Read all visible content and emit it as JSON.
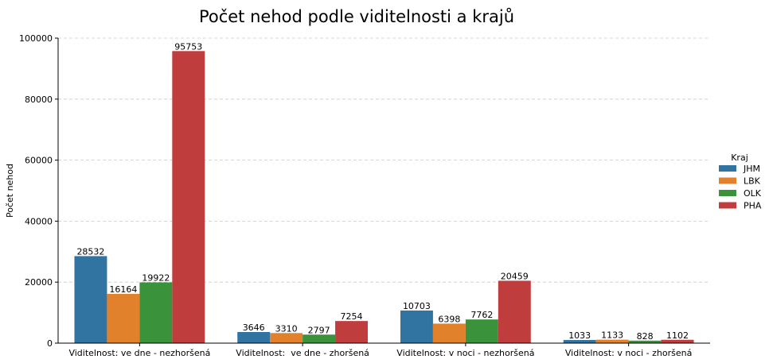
{
  "chart_data": {
    "type": "bar",
    "title": "Počet nehod podle viditelnosti a krajů",
    "xlabel": "",
    "ylabel": "Počet nehod",
    "ylim": [
      0,
      100000
    ],
    "yticks": [
      0,
      20000,
      40000,
      60000,
      80000,
      100000
    ],
    "grid": true,
    "legend": {
      "title": "Kraj",
      "placement": "right"
    },
    "categories": [
      "Viditelnost: ve dne - nezhoršená",
      "Viditelnost:  ve dne - zhoršená",
      "Viditelnost: v noci - nezhoršená",
      "Viditelnost: v noci - zhoršená"
    ],
    "series": [
      {
        "name": "JHM",
        "color": "#3274a1",
        "values": [
          28532,
          3646,
          10703,
          1033
        ]
      },
      {
        "name": "LBK",
        "color": "#e1812c",
        "values": [
          16164,
          3310,
          6398,
          1133
        ]
      },
      {
        "name": "OLK",
        "color": "#3a923a",
        "values": [
          19922,
          2797,
          7762,
          828
        ]
      },
      {
        "name": "PHA",
        "color": "#c03d3e",
        "values": [
          95753,
          7254,
          20459,
          1102
        ]
      }
    ]
  }
}
